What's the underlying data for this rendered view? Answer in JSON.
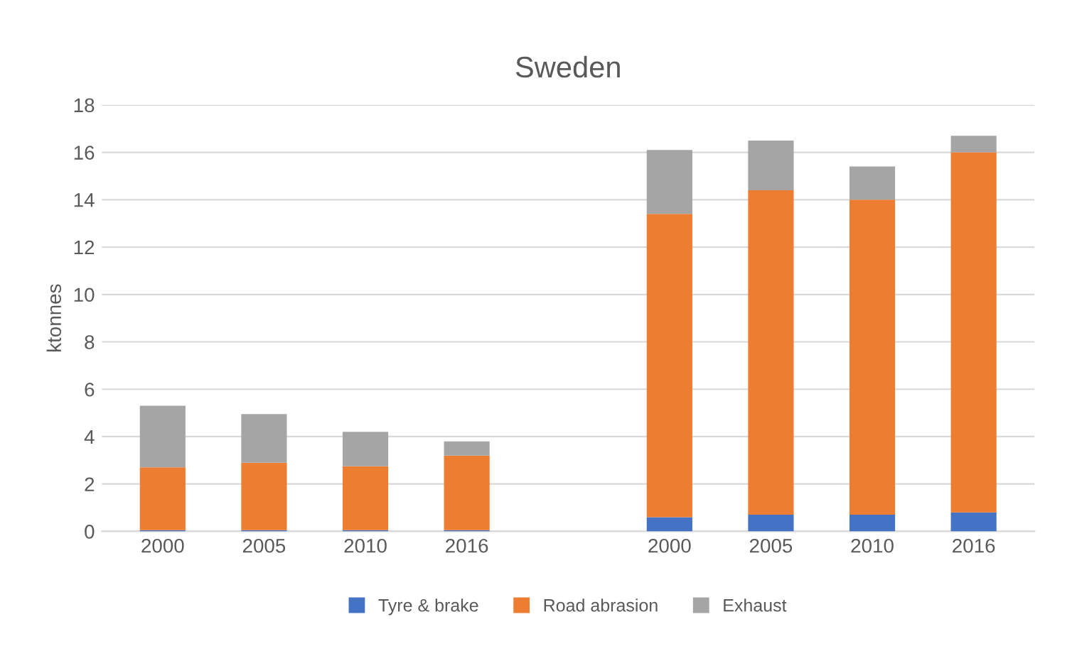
{
  "chart_data": {
    "type": "bar",
    "title": "Sweden",
    "ylabel": "ktonnes",
    "stacked": true,
    "categories": [
      "2000",
      "2005",
      "2010",
      "2016",
      null,
      "2000",
      "2005",
      "2010",
      "2016"
    ],
    "series": [
      {
        "name": "Tyre & brake",
        "color": "#4472c4",
        "values": [
          0.05,
          0.05,
          0.05,
          0.05,
          null,
          0.6,
          0.7,
          0.7,
          0.8
        ]
      },
      {
        "name": "Road abrasion",
        "color": "#ed7d31",
        "values": [
          2.65,
          2.85,
          2.7,
          3.15,
          null,
          12.8,
          13.7,
          13.3,
          15.2
        ]
      },
      {
        "name": "Exhaust",
        "color": "#a5a5a5",
        "values": [
          2.6,
          2.05,
          1.45,
          0.6,
          null,
          2.7,
          2.1,
          1.4,
          0.7
        ]
      }
    ],
    "ylim": [
      0,
      18
    ],
    "yticks": [
      0,
      2,
      4,
      6,
      8,
      10,
      12,
      14,
      16,
      18
    ],
    "grid": "y",
    "legend": "bottom"
  }
}
